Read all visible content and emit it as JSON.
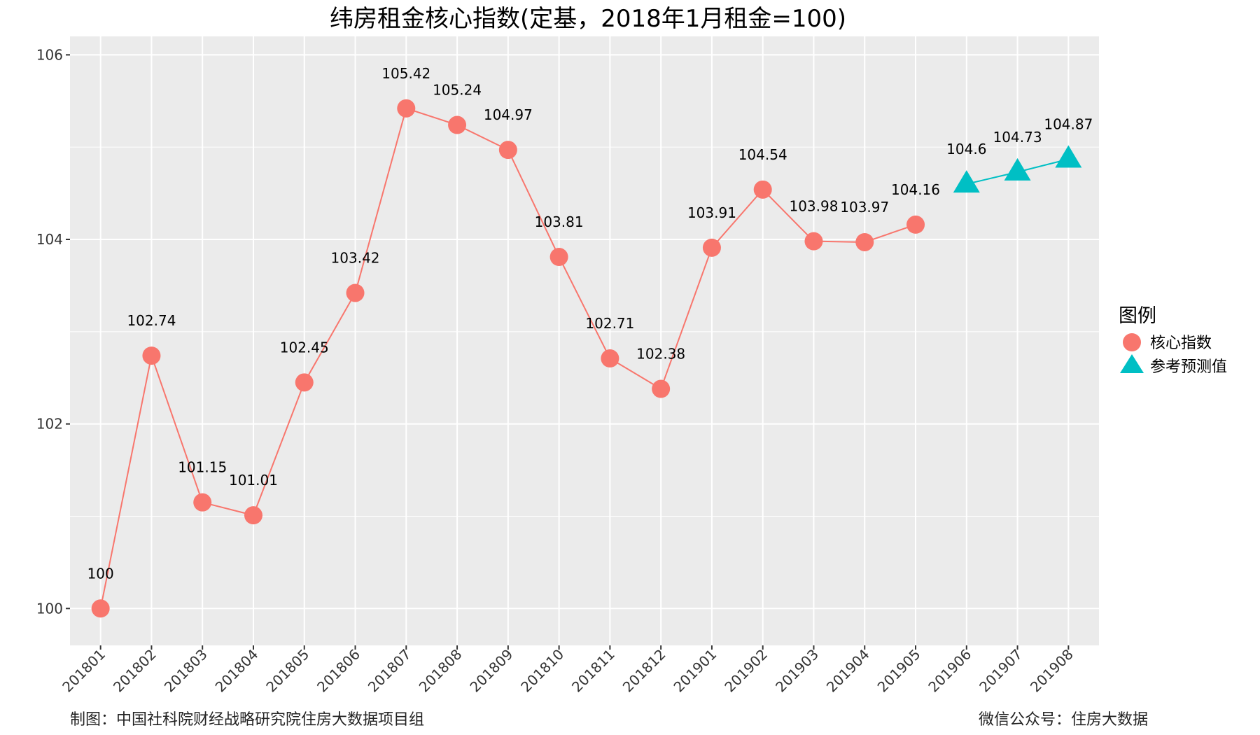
{
  "chart_data": {
    "type": "line",
    "title": "纬房租金核心指数(定基，2018年1月租金=100)",
    "xlabel": "",
    "ylabel": "",
    "categories": [
      "201801",
      "201802",
      "201803",
      "201804",
      "201805",
      "201806",
      "201807",
      "201808",
      "201809",
      "201810",
      "201811",
      "201812",
      "201901",
      "201902",
      "201903",
      "201904",
      "201905",
      "201906",
      "201907",
      "201908"
    ],
    "ylim": [
      99.6,
      106.2
    ],
    "yticks": [
      100,
      102,
      104,
      106
    ],
    "grid": true,
    "legend": {
      "title": "图例",
      "position": "right",
      "entries": [
        {
          "label": "核心指数",
          "marker": "circle",
          "color": "#F8766D"
        },
        {
          "label": "参考预测值",
          "marker": "triangle",
          "color": "#00BFC4"
        }
      ]
    },
    "series": [
      {
        "name": "核心指数",
        "color": "#F8766D",
        "marker": "circle",
        "x": [
          "201801",
          "201802",
          "201803",
          "201804",
          "201805",
          "201806",
          "201807",
          "201808",
          "201809",
          "201810",
          "201811",
          "201812",
          "201901",
          "201902",
          "201903",
          "201904",
          "201905"
        ],
        "values": [
          100,
          102.74,
          101.15,
          101.01,
          102.45,
          103.42,
          105.42,
          105.24,
          104.97,
          103.81,
          102.71,
          102.38,
          103.91,
          104.54,
          103.98,
          103.97,
          104.16
        ],
        "labels": [
          "100",
          "102.74",
          "101.15",
          "101.01",
          "102.45",
          "103.42",
          "105.42",
          "105.24",
          "104.97",
          "103.81",
          "102.71",
          "102.38",
          "103.91",
          "104.54",
          "103.98",
          "103.97",
          "104.16"
        ]
      },
      {
        "name": "参考预测值",
        "color": "#00BFC4",
        "marker": "triangle",
        "x": [
          "201906",
          "201907",
          "201908"
        ],
        "values": [
          104.6,
          104.73,
          104.87
        ],
        "labels": [
          "104.6",
          "104.73",
          "104.87"
        ]
      }
    ]
  },
  "footer": {
    "left": "制图：中国社科院财经战略研究院住房大数据项目组",
    "right": "微信公众号：住房大数据"
  },
  "colors": {
    "panel_bg": "#EBEBEB",
    "grid": "#FFFFFF"
  }
}
